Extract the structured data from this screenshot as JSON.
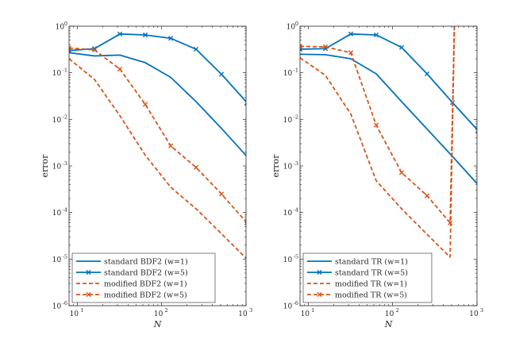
{
  "colors": {
    "blue": "#0072BD",
    "orange": "#D95319",
    "axis": "#262626",
    "frame": "#262626"
  },
  "chart_data": [
    {
      "type": "line",
      "title": "",
      "xlabel": "N",
      "ylabel": "error",
      "xscale": "log",
      "yscale": "log",
      "xlim": [
        8,
        1000
      ],
      "ylim": [
        1e-06,
        1
      ],
      "xticks": [
        {
          "mant": "10",
          "exp": "1"
        },
        {
          "mant": "10",
          "exp": "2"
        },
        {
          "mant": "10",
          "exp": "3"
        }
      ],
      "yticks": [
        {
          "mant": "10",
          "exp": "-6"
        },
        {
          "mant": "10",
          "exp": "-5"
        },
        {
          "mant": "10",
          "exp": "-4"
        },
        {
          "mant": "10",
          "exp": "-3"
        },
        {
          "mant": "10",
          "exp": "-2"
        },
        {
          "mant": "10",
          "exp": "-1"
        },
        {
          "mant": "10",
          "exp": "0"
        }
      ],
      "legend_position": "bottom-left",
      "series": [
        {
          "name": "standard BDF2 (w=1)",
          "color": "blue",
          "dash": "solid",
          "marker": "none",
          "x": [
            8,
            16,
            32,
            64,
            128,
            256,
            512,
            1024
          ],
          "y": [
            0.27,
            0.23,
            0.24,
            0.165,
            0.08,
            0.024,
            0.0064,
            0.0016
          ]
        },
        {
          "name": "standard BDF2 (w=5)",
          "color": "blue",
          "dash": "solid",
          "marker": "x",
          "x": [
            8,
            16,
            32,
            64,
            128,
            256,
            512,
            1024
          ],
          "y": [
            0.3,
            0.33,
            0.68,
            0.65,
            0.55,
            0.32,
            0.093,
            0.023
          ]
        },
        {
          "name": "modified BDF2 (w=1)",
          "color": "orange",
          "dash": "dashed",
          "marker": "none",
          "x": [
            8,
            16,
            32,
            64,
            128,
            256,
            512,
            1024
          ],
          "y": [
            0.2,
            0.072,
            0.012,
            0.0017,
            0.00035,
            0.00012,
            3.5e-05,
            1e-05
          ]
        },
        {
          "name": "modified BDF2 (w=5)",
          "color": "orange",
          "dash": "dashed",
          "marker": "x",
          "x": [
            8,
            16,
            32,
            64,
            128,
            256,
            512,
            1024
          ],
          "y": [
            0.34,
            0.31,
            0.12,
            0.021,
            0.0027,
            0.00093,
            0.00025,
            6e-05
          ]
        }
      ]
    },
    {
      "type": "line",
      "title": "",
      "xlabel": "N",
      "ylabel": "error",
      "xscale": "log",
      "yscale": "log",
      "xlim": [
        8,
        1000
      ],
      "ylim": [
        1e-06,
        1
      ],
      "xticks": [
        {
          "mant": "10",
          "exp": "1"
        },
        {
          "mant": "10",
          "exp": "2"
        },
        {
          "mant": "10",
          "exp": "3"
        }
      ],
      "yticks": [
        {
          "mant": "10",
          "exp": "-6"
        },
        {
          "mant": "10",
          "exp": "-5"
        },
        {
          "mant": "10",
          "exp": "-4"
        },
        {
          "mant": "10",
          "exp": "-3"
        },
        {
          "mant": "10",
          "exp": "-2"
        },
        {
          "mant": "10",
          "exp": "-1"
        },
        {
          "mant": "10",
          "exp": "0"
        }
      ],
      "legend_position": "bottom-left",
      "series": [
        {
          "name": "standard TR (w=1)",
          "color": "blue",
          "dash": "solid",
          "marker": "none",
          "x": [
            8,
            16,
            32,
            64,
            128,
            256,
            512,
            1024
          ],
          "y": [
            0.25,
            0.245,
            0.2,
            0.095,
            0.024,
            0.0062,
            0.0016,
            0.0004
          ]
        },
        {
          "name": "standard TR (w=5)",
          "color": "blue",
          "dash": "solid",
          "marker": "x",
          "x": [
            8,
            16,
            32,
            64,
            128,
            256,
            512,
            1024
          ],
          "y": [
            0.32,
            0.33,
            0.68,
            0.65,
            0.35,
            0.095,
            0.023,
            0.0058
          ]
        },
        {
          "name": "modified TR (w=1)",
          "color": "orange",
          "dash": "dashed",
          "marker": "none",
          "x": [
            8,
            16,
            32,
            64,
            128,
            256,
            480,
            540
          ],
          "y": [
            0.21,
            0.088,
            0.013,
            0.00048,
            0.00012,
            3.4e-05,
            1.1e-05,
            1.2
          ]
        },
        {
          "name": "modified TR (w=5)",
          "color": "orange",
          "dash": "dashed",
          "marker": "x",
          "x": [
            8,
            16,
            32,
            64,
            128,
            256,
            480,
            540
          ],
          "y": [
            0.37,
            0.36,
            0.27,
            0.0075,
            0.00072,
            0.00023,
            6e-05,
            1.2
          ]
        }
      ]
    }
  ]
}
